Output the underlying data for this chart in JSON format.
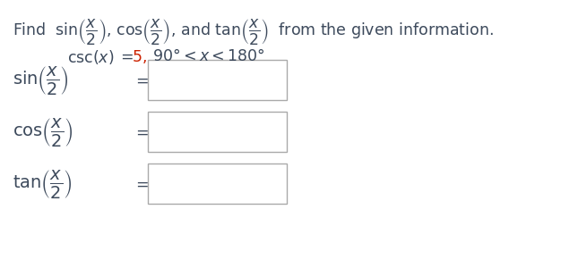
{
  "background_color": "#ffffff",
  "dark_color": "#3d4a5c",
  "red_color": "#cc2200",
  "box_edge_color": "#aaaaaa",
  "title_fontsize": 12.5,
  "cond_fontsize": 12.5,
  "label_fontsize": 14,
  "fig_width": 6.26,
  "fig_height": 2.91,
  "dpi": 100
}
